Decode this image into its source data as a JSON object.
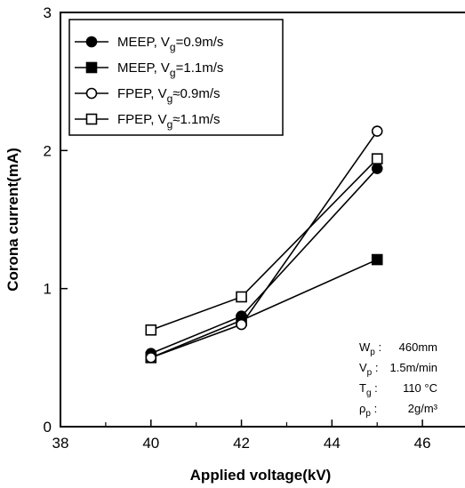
{
  "chart_data": {
    "type": "line",
    "xlabel": "Applied voltage(kV)",
    "ylabel": "Corona current(mA)",
    "xlim": [
      38,
      47
    ],
    "ylim": [
      0,
      3
    ],
    "xticks": [
      38,
      40,
      42,
      44,
      46
    ],
    "yticks": [
      0,
      1,
      2,
      3
    ],
    "grid": false,
    "legend_position": "top-left",
    "series": [
      {
        "name": "MEEP, Vg=0.9m/s",
        "label_main": "MEEP, V",
        "label_sub": "g",
        "label_rest": "=0.9m/s",
        "marker": "filled-circle",
        "x": [
          40,
          42,
          45
        ],
        "y": [
          0.53,
          0.8,
          1.87
        ]
      },
      {
        "name": "MEEP, Vg=1.1m/s",
        "label_main": "MEEP, V",
        "label_sub": "g",
        "label_rest": "=1.1m/s",
        "marker": "filled-square",
        "x": [
          40,
          42,
          45
        ],
        "y": [
          0.5,
          0.77,
          1.21
        ]
      },
      {
        "name": "FPEP, Vg≈0.9m/s",
        "label_main": "FPEP, V",
        "label_sub": "g",
        "label_rest": "≈0.9m/s",
        "marker": "open-circle",
        "x": [
          40,
          42,
          45
        ],
        "y": [
          0.5,
          0.74,
          2.14
        ]
      },
      {
        "name": "FPEP, Vg≈1.1m/s",
        "label_main": "FPEP, V",
        "label_sub": "g",
        "label_rest": "≈1.1m/s",
        "marker": "open-square",
        "x": [
          40,
          42,
          45
        ],
        "y": [
          0.7,
          0.94,
          1.94
        ]
      }
    ],
    "parameters": [
      {
        "sym": "W",
        "sub": "p",
        "value": "460mm"
      },
      {
        "sym": "V",
        "sub": "p",
        "value": "1.5m/min"
      },
      {
        "sym": "T",
        "sub": "g",
        "value": "110 °C"
      },
      {
        "sym": "ρ",
        "sub": "p",
        "value": "2g/m³"
      }
    ]
  }
}
